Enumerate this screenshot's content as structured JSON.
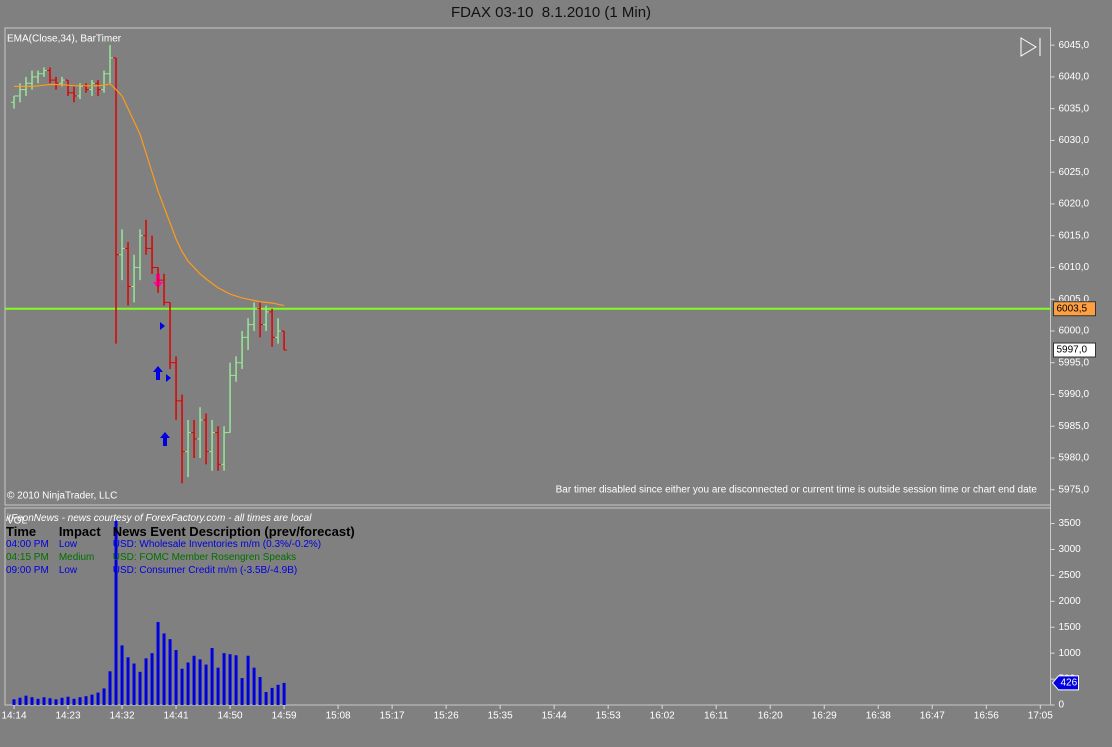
{
  "chart_data": [
    {
      "type": "ohlc",
      "title": "FDAX 03-10  8.1.2010 (1 Min)",
      "indicator_label": "EMA(Close,34), BarTimer",
      "copyright": "© 2010 NinjaTrader, LLC",
      "bar_timer_note": "Bar timer disabled since either you are disconnected or current time is outside session time or chart end date",
      "x": [
        854,
        855,
        856,
        857,
        858,
        859,
        860,
        861,
        862,
        863,
        864,
        865,
        866,
        867,
        868,
        869,
        870,
        871,
        872,
        873,
        874,
        875,
        876,
        877,
        878,
        879,
        880,
        881,
        882,
        883,
        884,
        885,
        886,
        887,
        888,
        889,
        890,
        891,
        892,
        893,
        894,
        895,
        896,
        897,
        898,
        899
      ],
      "open": [
        6036,
        6037,
        6038,
        6039,
        6040,
        6040.5,
        6041,
        6039.5,
        6039,
        6039.5,
        6037.5,
        6037,
        6038.5,
        6038,
        6039,
        6038,
        6040.5,
        6043,
        6012,
        6013,
        6007,
        6010,
        6015,
        6013,
        6010,
        6008,
        6004.5,
        5995,
        5989,
        5981,
        5984,
        5983,
        5986,
        5981,
        5984,
        5979,
        5984,
        5993,
        5995,
        5999,
        6001,
        6003.5,
        6001,
        6003,
        5999,
        6000
      ],
      "high": [
        6037,
        6039,
        6040,
        6041,
        6041,
        6041.5,
        6041.5,
        6040,
        6040,
        6039.5,
        6038.5,
        6039,
        6039,
        6039.5,
        6039.5,
        6041,
        6045,
        6043,
        6016,
        6014,
        6012,
        6016,
        6017.5,
        6015,
        6010,
        6009,
        6004.5,
        5996,
        5990,
        5986,
        5986,
        5988,
        5987,
        5986,
        5985,
        5985,
        5995,
        5996,
        6000,
        6002,
        6004.5,
        6004.5,
        6004,
        6003.5,
        6002,
        6000
      ],
      "low": [
        6035,
        6036,
        6037,
        6038,
        6039,
        6040,
        6039,
        6038,
        6038.5,
        6037,
        6036,
        6036.5,
        6037.5,
        6037,
        6037,
        6037.5,
        6039,
        5998,
        6008,
        6004,
        6004.5,
        6008,
        6012,
        6009,
        6006,
        6004,
        5994,
        5986,
        5976,
        5977,
        5980,
        5980,
        5979,
        5978,
        5978,
        5978,
        5984,
        5992,
        5994,
        5997,
        6000,
        5999,
        6000,
        5997.5,
        5998,
        5997
      ],
      "close": [
        6037,
        6038,
        6039,
        6040,
        6040.5,
        6041,
        6039.5,
        6039,
        6039.5,
        6037.5,
        6037,
        6038.5,
        6038,
        6039,
        6038,
        6040.5,
        6043,
        6012,
        6013,
        6007,
        6010,
        6015,
        6013,
        6010,
        6008,
        6004.5,
        5995,
        5989,
        5981,
        5984,
        5983,
        5986,
        5981,
        5984,
        5979,
        5984,
        5993,
        5995,
        5999,
        6001,
        6003.5,
        6001,
        6003,
        5999,
        6000,
        5997
      ],
      "up_color": "#98e698",
      "down_color": "#e00000",
      "ema": {
        "color": "#ff9a1a",
        "values": [
          6038.5,
          6038.5,
          6038.5,
          6038.5,
          6038.6,
          6038.7,
          6038.8,
          6038.8,
          6038.8,
          6038.7,
          6038.6,
          6038.6,
          6038.6,
          6038.6,
          6038.6,
          6038.7,
          6038.9,
          6038,
          6037,
          6035,
          6033,
          6031,
          6028,
          6025,
          6022,
          6019.5,
          6017,
          6014.5,
          6012.5,
          6011,
          6010,
          6009,
          6008.2,
          6007.5,
          6006.8,
          6006.3,
          6005.8,
          6005.5,
          6005.2,
          6005,
          6004.8,
          6004.6,
          6004.5,
          6004.4,
          6004.2,
          6004
        ]
      },
      "hline": {
        "value": 6003.5,
        "label": "6003,5",
        "color": "#80ff20"
      },
      "last_price": {
        "value": 5997,
        "label": "5997,0"
      },
      "xlim": [
        852.5,
        1026.7
      ],
      "ylim": [
        5972.6,
        6047.7
      ],
      "yticks": [
        {
          "value": 5975,
          "label": "5975,0"
        },
        {
          "value": 5980,
          "label": "5980,0"
        },
        {
          "value": 5985,
          "label": "5985,0"
        },
        {
          "value": 5990,
          "label": "5990,0"
        },
        {
          "value": 5995,
          "label": "5995,0"
        },
        {
          "value": 6000,
          "label": "6000,0"
        },
        {
          "value": 6005,
          "label": "6005,0"
        },
        {
          "value": 6010,
          "label": "6010,0"
        },
        {
          "value": 6015,
          "label": "6015,0"
        },
        {
          "value": 6020,
          "label": "6020,0"
        },
        {
          "value": 6025,
          "label": "6025,0"
        },
        {
          "value": 6030,
          "label": "6030,0"
        },
        {
          "value": 6035,
          "label": "6035,0"
        },
        {
          "value": 6040,
          "label": "6040,0"
        },
        {
          "value": 6045,
          "label": "6045,0"
        }
      ]
    },
    {
      "type": "bar",
      "axis_label": "VOL",
      "color": "#0000e0",
      "x": [
        854,
        855,
        856,
        857,
        858,
        859,
        860,
        861,
        862,
        863,
        864,
        865,
        866,
        867,
        868,
        869,
        870,
        871,
        872,
        873,
        874,
        875,
        876,
        877,
        878,
        879,
        880,
        881,
        882,
        883,
        884,
        885,
        886,
        887,
        888,
        889,
        890,
        891,
        892,
        893,
        894,
        895,
        896,
        897,
        898,
        899
      ],
      "values": [
        110,
        140,
        180,
        150,
        120,
        150,
        130,
        110,
        140,
        160,
        120,
        150,
        170,
        200,
        240,
        320,
        650,
        3560,
        1150,
        920,
        800,
        640,
        900,
        1000,
        1600,
        1380,
        1270,
        1060,
        700,
        820,
        950,
        880,
        780,
        1100,
        720,
        1000,
        980,
        960,
        520,
        950,
        720,
        540,
        250,
        330,
        390,
        426
      ],
      "last_value": 426,
      "xlim": [
        852.5,
        1026.7
      ],
      "ylim": [
        0,
        3800
      ],
      "yticks": [
        0,
        500,
        1000,
        1500,
        2000,
        2500,
        3000,
        3500
      ],
      "xticks": [
        {
          "value": 854,
          "label": "14:14"
        },
        {
          "value": 863,
          "label": "14:23"
        },
        {
          "value": 872,
          "label": "14:32"
        },
        {
          "value": 881,
          "label": "14:41"
        },
        {
          "value": 890,
          "label": "14:50"
        },
        {
          "value": 899,
          "label": "14:59"
        },
        {
          "value": 908,
          "label": "15:08"
        },
        {
          "value": 917,
          "label": "15:17"
        },
        {
          "value": 926,
          "label": "15:26"
        },
        {
          "value": 935,
          "label": "15:35"
        },
        {
          "value": 944,
          "label": "15:44"
        },
        {
          "value": 953,
          "label": "15:53"
        },
        {
          "value": 962,
          "label": "16:02"
        },
        {
          "value": 971,
          "label": "16:11"
        },
        {
          "value": 980,
          "label": "16:20"
        },
        {
          "value": 989,
          "label": "16:29"
        },
        {
          "value": 998,
          "label": "16:38"
        },
        {
          "value": 1007,
          "label": "16:47"
        },
        {
          "value": 1016,
          "label": "16:56"
        },
        {
          "value": 1025,
          "label": "17:05"
        }
      ]
    }
  ],
  "news": {
    "source": "itFeonNews - news courtesy of ForexFactory.com - all times are local",
    "headers": [
      "Time",
      "Impact",
      "News Event Description (prev/forecast)"
    ],
    "rows": [
      {
        "color": "#0000e0",
        "cells": [
          "04:00 PM",
          "Low",
          "USD: Wholesale Inventories m/m (0.3%/-0.2%)"
        ]
      },
      {
        "color": "#007000",
        "cells": [
          "04:15 PM",
          "Medium",
          "USD: FOMC Member Rosengren Speaks"
        ]
      },
      {
        "color": "#0000e0",
        "cells": [
          "09:00 PM",
          "Low",
          "USD: Consumer Credit m/m (-3.5B/-4.9B)"
        ]
      }
    ]
  }
}
